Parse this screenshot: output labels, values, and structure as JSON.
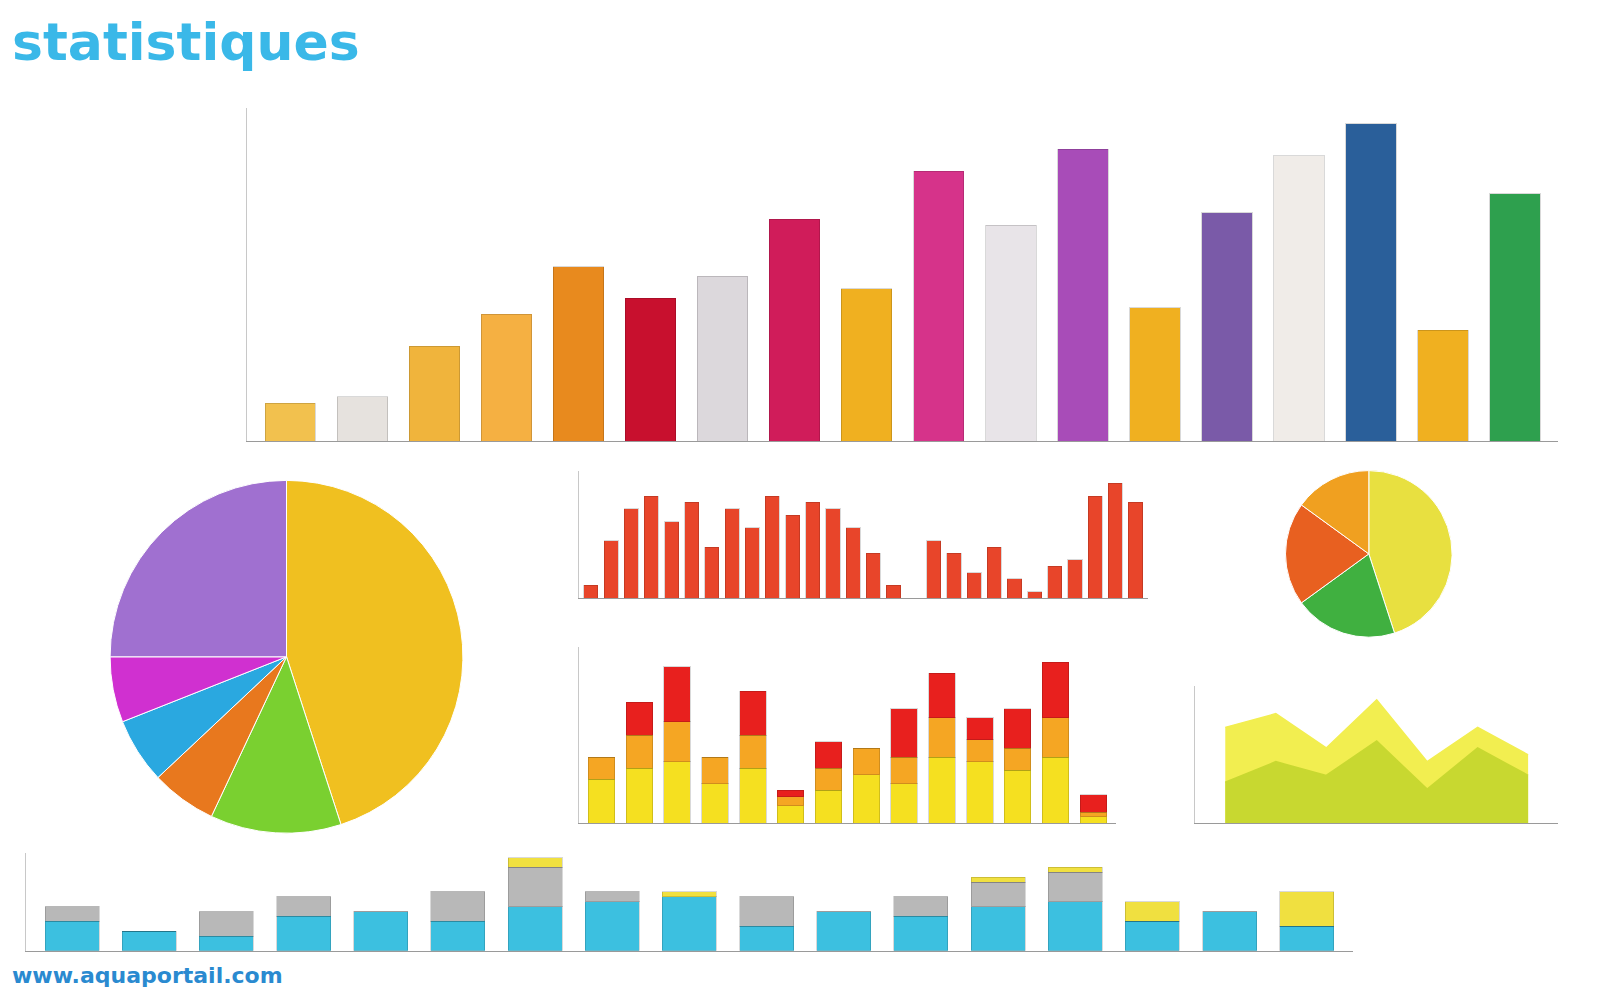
{
  "title": "statistiques",
  "url": "www.aquaportail.com",
  "chart_data": [
    {
      "type": "bar",
      "categories": [
        null,
        null,
        null,
        null,
        null,
        null,
        null,
        null,
        null,
        null,
        null,
        null,
        null,
        null,
        null,
        null,
        null,
        null
      ],
      "values": [
        12,
        14,
        30,
        40,
        55,
        45,
        52,
        70,
        48,
        85,
        68,
        92,
        42,
        72,
        90,
        100,
        35,
        78
      ],
      "colors": [
        "#f2c14e",
        "#e6e2de",
        "#f0b43c",
        "#f5b042",
        "#e88a1e",
        "#c8102e",
        "#dcd8dc",
        "#d01c5a",
        "#f0b020",
        "#d6338a",
        "#e8e4e8",
        "#a84cb8",
        "#f0b020",
        "#7a5aa8",
        "#f0ece8",
        "#2a5f9a",
        "#f0b020",
        "#2ea04e"
      ],
      "ylim": [
        0,
        105
      ],
      "yticks": [],
      "tick_labels": false
    },
    {
      "type": "bar",
      "categories": [
        null,
        null,
        null,
        null,
        null,
        null,
        null,
        null,
        null,
        null,
        null,
        null,
        null,
        null,
        null,
        null,
        null,
        null,
        null,
        null,
        null,
        null,
        null,
        null,
        null,
        null,
        null,
        null
      ],
      "values": [
        10,
        45,
        70,
        80,
        60,
        75,
        40,
        70,
        55,
        80,
        65,
        75,
        70,
        55,
        35,
        10,
        0,
        45,
        35,
        20,
        40,
        15,
        5,
        25,
        30,
        80,
        90,
        75
      ],
      "color": "#e8452a",
      "ylim": [
        0,
        100
      ],
      "yticks": [],
      "tick_labels": false
    },
    {
      "type": "bar",
      "stacked": true,
      "categories": [
        null,
        null,
        null,
        null,
        null,
        null,
        null,
        null,
        null,
        null,
        null,
        null,
        null,
        null
      ],
      "series": [
        {
          "color": "#f5e020",
          "values": [
            20,
            25,
            28,
            18,
            25,
            8,
            15,
            22,
            18,
            30,
            28,
            24,
            30,
            3
          ]
        },
        {
          "color": "#f5a623",
          "values": [
            10,
            15,
            18,
            12,
            15,
            4,
            10,
            12,
            12,
            18,
            10,
            10,
            18,
            2
          ]
        },
        {
          "color": "#e8201e",
          "values": [
            0,
            15,
            25,
            0,
            20,
            3,
            12,
            0,
            22,
            20,
            10,
            18,
            25,
            8
          ]
        }
      ],
      "ylim": [
        0,
        80
      ],
      "yticks": [],
      "tick_labels": false
    },
    {
      "type": "area",
      "categories": [
        null,
        null,
        null,
        null,
        null,
        null,
        null
      ],
      "series": [
        {
          "color": "#f2ee50",
          "values": [
            70,
            80,
            55,
            90,
            45,
            70,
            50
          ]
        },
        {
          "color": "#c8d830",
          "values": [
            30,
            45,
            35,
            60,
            25,
            55,
            35
          ]
        }
      ],
      "ylim": [
        0,
        100
      ],
      "yticks": [],
      "tick_labels": false
    },
    {
      "type": "bar",
      "stacked": true,
      "categories": [
        null,
        null,
        null,
        null,
        null,
        null,
        null,
        null,
        null,
        null,
        null,
        null,
        null,
        null,
        null,
        null,
        null
      ],
      "series": [
        {
          "color": "#3cc0e0",
          "values": [
            30,
            20,
            15,
            35,
            40,
            30,
            45,
            50,
            55,
            25,
            40,
            35,
            45,
            50,
            30,
            40,
            25
          ]
        },
        {
          "color": "#b8b8b8",
          "values": [
            15,
            0,
            25,
            20,
            0,
            30,
            40,
            10,
            0,
            30,
            0,
            20,
            25,
            30,
            0,
            0,
            0
          ]
        },
        {
          "color": "#f0e040",
          "values": [
            0,
            0,
            0,
            0,
            0,
            0,
            10,
            0,
            5,
            0,
            0,
            0,
            5,
            5,
            20,
            0,
            35
          ]
        }
      ],
      "ylim": [
        0,
        100
      ],
      "yticks": [],
      "tick_labels": false
    },
    {
      "type": "pie",
      "values": [
        45,
        12,
        6,
        6,
        6,
        25
      ],
      "colors": [
        "#f0c020",
        "#7ad030",
        "#e8781e",
        "#2aa8e0",
        "#d030d0",
        "#a070d0"
      ]
    },
    {
      "type": "pie",
      "values": [
        45,
        20,
        20,
        15
      ],
      "colors": [
        "#e8e040",
        "#40b040",
        "#e86020",
        "#f0a020"
      ]
    }
  ]
}
